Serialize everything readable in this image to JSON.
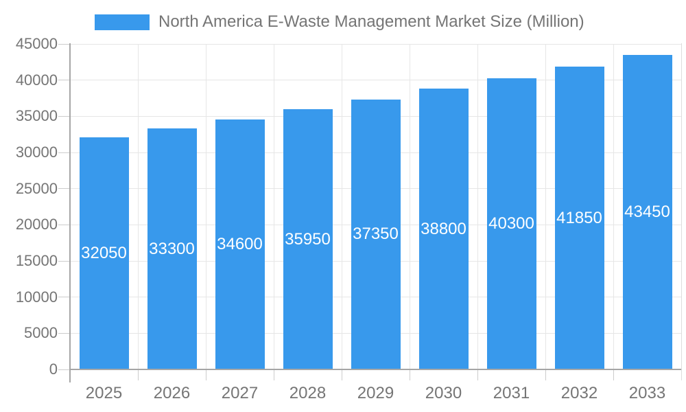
{
  "chart_data": {
    "type": "bar",
    "title": "North America E-Waste Management Market Size (Million)",
    "series_name": "North America E-Waste Management Market Size (Million)",
    "categories": [
      "2025",
      "2026",
      "2027",
      "2028",
      "2029",
      "2030",
      "2031",
      "2032",
      "2033"
    ],
    "values": [
      32050,
      33300,
      34600,
      35950,
      37350,
      38800,
      40300,
      41850,
      43450
    ],
    "value_labels": [
      "32050",
      "33300",
      "34600",
      "35950",
      "37350",
      "38800",
      "40300",
      "41850",
      "43450"
    ],
    "xlabel": "",
    "ylabel": "",
    "ylim": [
      0,
      45000
    ],
    "ytick_step": 5000,
    "ytick_labels": [
      "0",
      "5000",
      "10000",
      "15000",
      "20000",
      "25000",
      "30000",
      "35000",
      "40000",
      "45000"
    ],
    "grid": "horizontal-and-vertical",
    "legend_position": "top",
    "colors": {
      "bar": "#3899ec",
      "value_label": "#ffffff",
      "axis_text": "#757575",
      "axis_line": "#a6a6a6",
      "gridline": "#e6e6e6"
    }
  }
}
